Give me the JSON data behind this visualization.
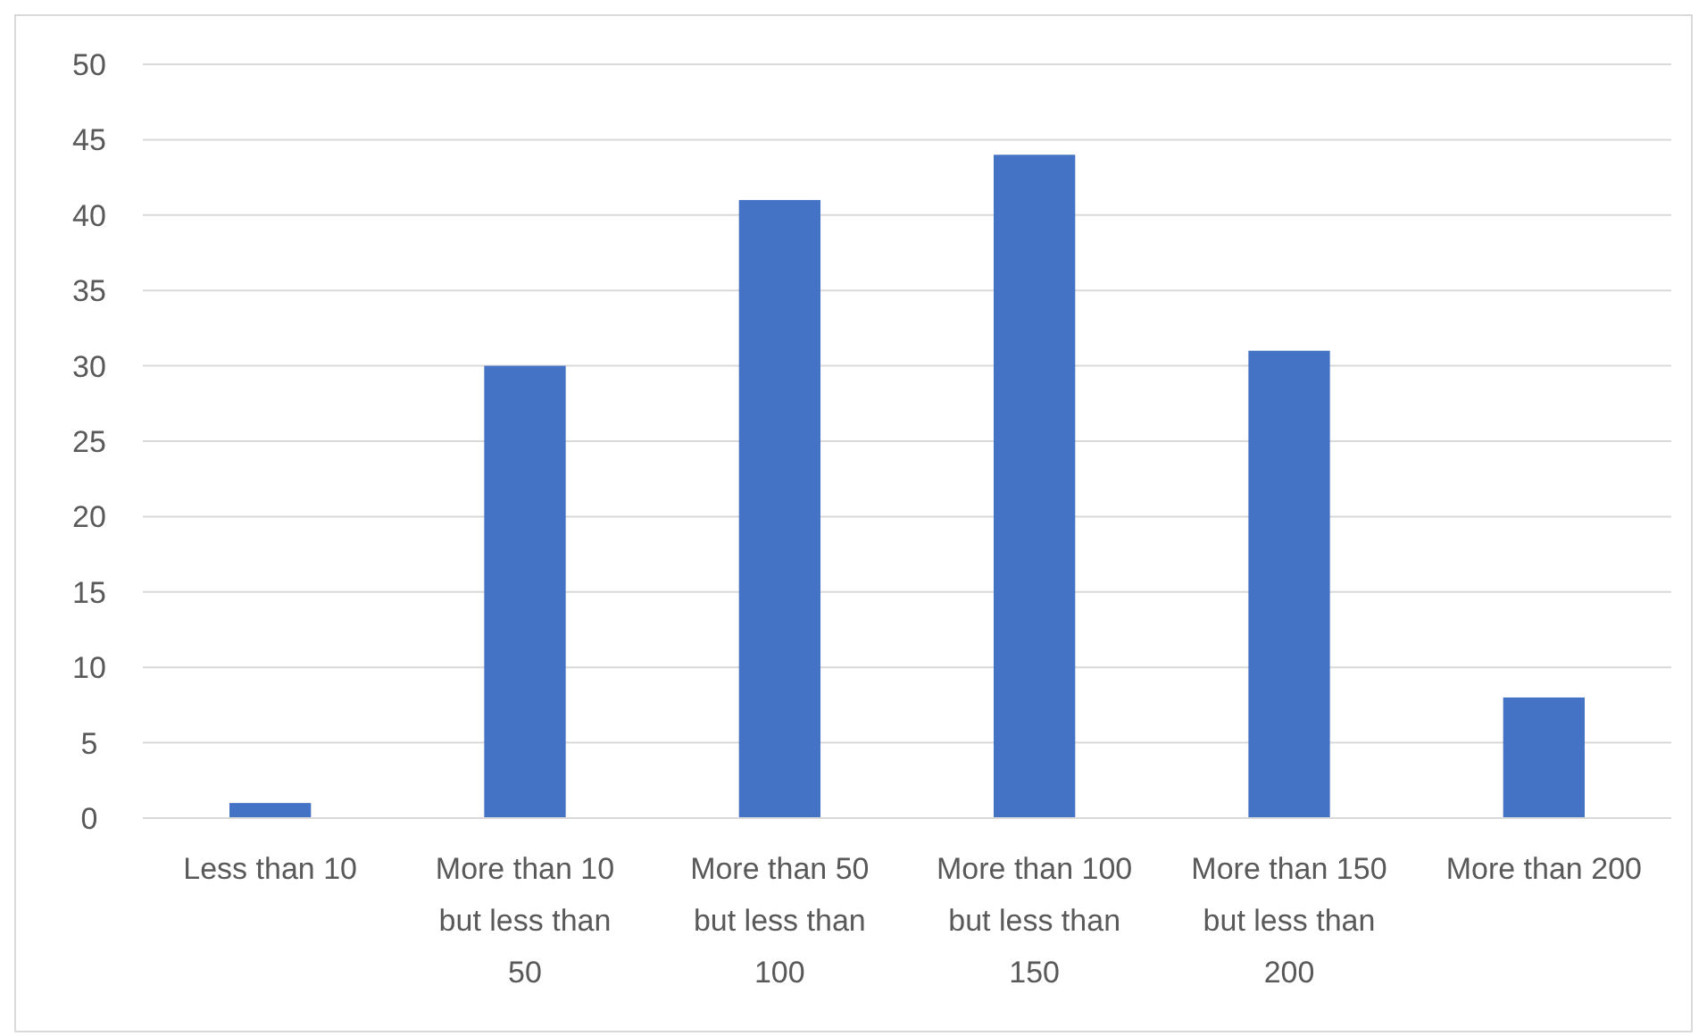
{
  "chart_data": {
    "type": "bar",
    "categories": [
      "Less than 10",
      "More than 10 but less than 50",
      "More than 50 but less than 100",
      "More than 100 but less than 150",
      "More than 150 but less than 200",
      "More than 200"
    ],
    "values": [
      1,
      30,
      41,
      44,
      31,
      8
    ],
    "color": "#4472c4",
    "ylim": [
      0,
      50
    ],
    "yticks": [
      0,
      5,
      10,
      15,
      20,
      25,
      30,
      35,
      40,
      45,
      50
    ],
    "grid": "y"
  }
}
